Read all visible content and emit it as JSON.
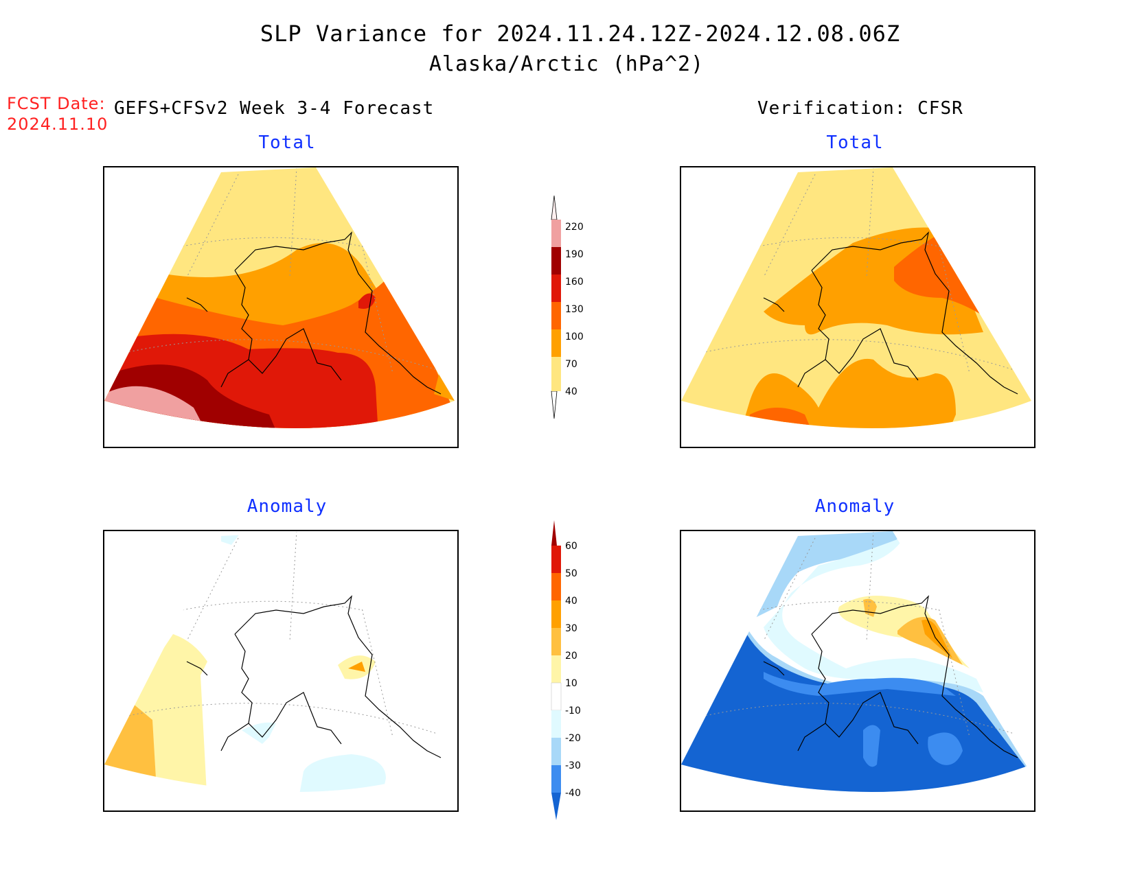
{
  "header": {
    "title": "SLP Variance for 2024.11.24.12Z-2024.12.08.06Z",
    "subtitle": "Alaska/Arctic (hPa^2)",
    "fcst_label_line1": "FCST Date:",
    "fcst_label_line2": "2024.11.10",
    "left_heading": "GEFS+CFSv2 Week 3-4 Forecast",
    "right_heading": "Verification: CFSR"
  },
  "panels": {
    "forecast_total_title": "Total",
    "verification_total_title": "Total",
    "forecast_anomaly_title": "Anomaly",
    "verification_anomaly_title": "Anomaly"
  },
  "colorbar_total": {
    "labels": [
      "220",
      "190",
      "160",
      "130",
      "100",
      "70",
      "40"
    ],
    "colors": [
      "#fff0f0",
      "#f0a0a0",
      "#a00000",
      "#e01808",
      "#ff6600",
      "#ffa000",
      "#ffe680"
    ]
  },
  "colorbar_anomaly": {
    "labels": [
      "60",
      "50",
      "40",
      "30",
      "20",
      "10",
      "-10",
      "-20",
      "-30",
      "-40"
    ],
    "colors": [
      "#a00000",
      "#e01808",
      "#ff6600",
      "#ffa000",
      "#ffc040",
      "#fff5a8",
      "#ffffff",
      "#e0faff",
      "#a8d8f8",
      "#3c8cf0",
      "#1464d2"
    ]
  }
}
